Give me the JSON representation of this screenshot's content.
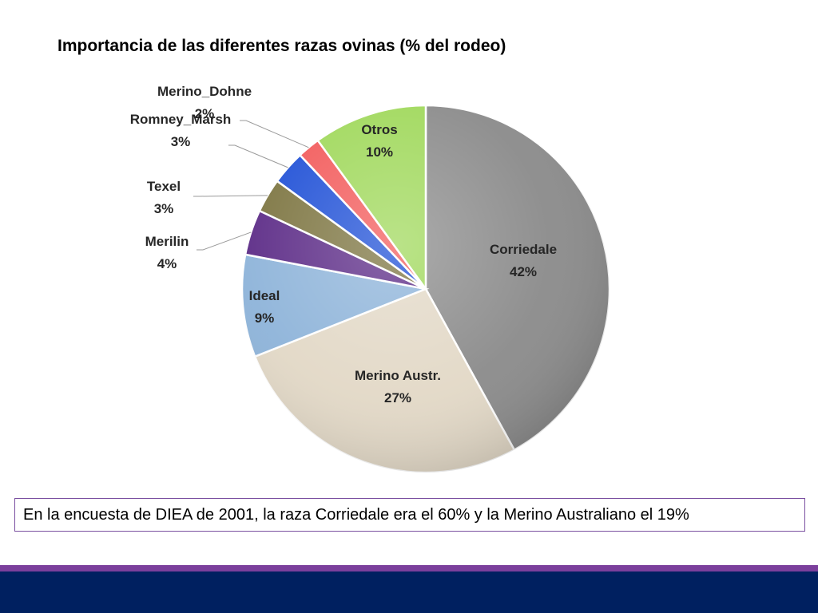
{
  "chart_data": {
    "type": "pie",
    "title": "Importancia de las diferentes razas ovinas (% del rodeo)",
    "slices": [
      {
        "name": "Corriedale",
        "value": 42,
        "value_label": "42%",
        "color": "#8a8a8a"
      },
      {
        "name": "Merino Austr.",
        "value": 27,
        "value_label": "27%",
        "color": "#e2d8c6"
      },
      {
        "name": "Ideal",
        "value": 9,
        "value_label": "9%",
        "color": "#8db3d9"
      },
      {
        "name": "Merilin",
        "value": 4,
        "value_label": "4%",
        "color": "#5b2a86"
      },
      {
        "name": "Texel",
        "value": 3,
        "value_label": "3%",
        "color": "#7c7440"
      },
      {
        "name": "Romney_Marsh",
        "value": 3,
        "value_label": "3%",
        "color": "#1e4fd6"
      },
      {
        "name": "Merino_Dohne",
        "value": 2,
        "value_label": "2%",
        "color": "#f25a5a"
      },
      {
        "name": "Otros",
        "value": 10,
        "value_label": "10%",
        "color": "#9fd85a"
      }
    ]
  },
  "footnote": "En la encuesta de DIEA de 2001, la raza Corriedale era el 60% y la Merino Australiano el 19%",
  "colors": {
    "footer_band": "#002060",
    "accent_band": "#7b3f9c",
    "footnote_border": "#7a4fa0"
  }
}
